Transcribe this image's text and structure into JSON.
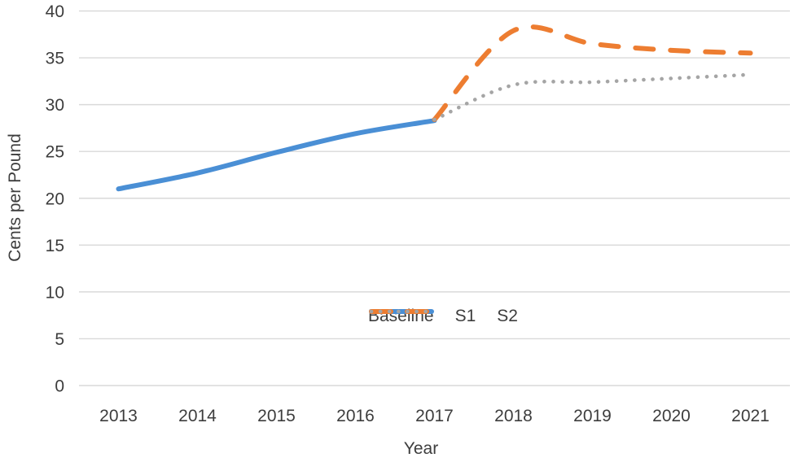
{
  "chart_data": {
    "type": "line",
    "title": "",
    "xlabel": "Year",
    "ylabel": "Cents per Pound",
    "categories": [
      "2013",
      "2014",
      "2015",
      "2016",
      "2017",
      "2018",
      "2019",
      "2020",
      "2021"
    ],
    "y_ticks": [
      0,
      5,
      10,
      15,
      20,
      25,
      30,
      35,
      40
    ],
    "ylim": [
      0,
      40
    ],
    "grid": "horizontal",
    "legend_position": "inside-bottom-right",
    "series": [
      {
        "name": "Baseline",
        "style": "solid",
        "color": "#4a8fd5",
        "x": [
          "2013",
          "2014",
          "2015",
          "2016",
          "2017"
        ],
        "values": [
          21.0,
          22.7,
          24.9,
          26.9,
          28.3
        ]
      },
      {
        "name": "S1",
        "style": "dashed",
        "color": "#ed7d31",
        "x": [
          "2017",
          "2018",
          "2019",
          "2020",
          "2021"
        ],
        "values": [
          28.4,
          37.9,
          36.5,
          35.8,
          35.5
        ]
      },
      {
        "name": "S2",
        "style": "dotted",
        "color": "#a5a5a5",
        "x": [
          "2017",
          "2018",
          "2019",
          "2020",
          "2021"
        ],
        "values": [
          28.4,
          32.1,
          32.4,
          32.8,
          33.2
        ]
      }
    ]
  },
  "colors": {
    "gridline": "#d9d9d9",
    "text": "#3d3d3d",
    "background": "#ffffff"
  }
}
